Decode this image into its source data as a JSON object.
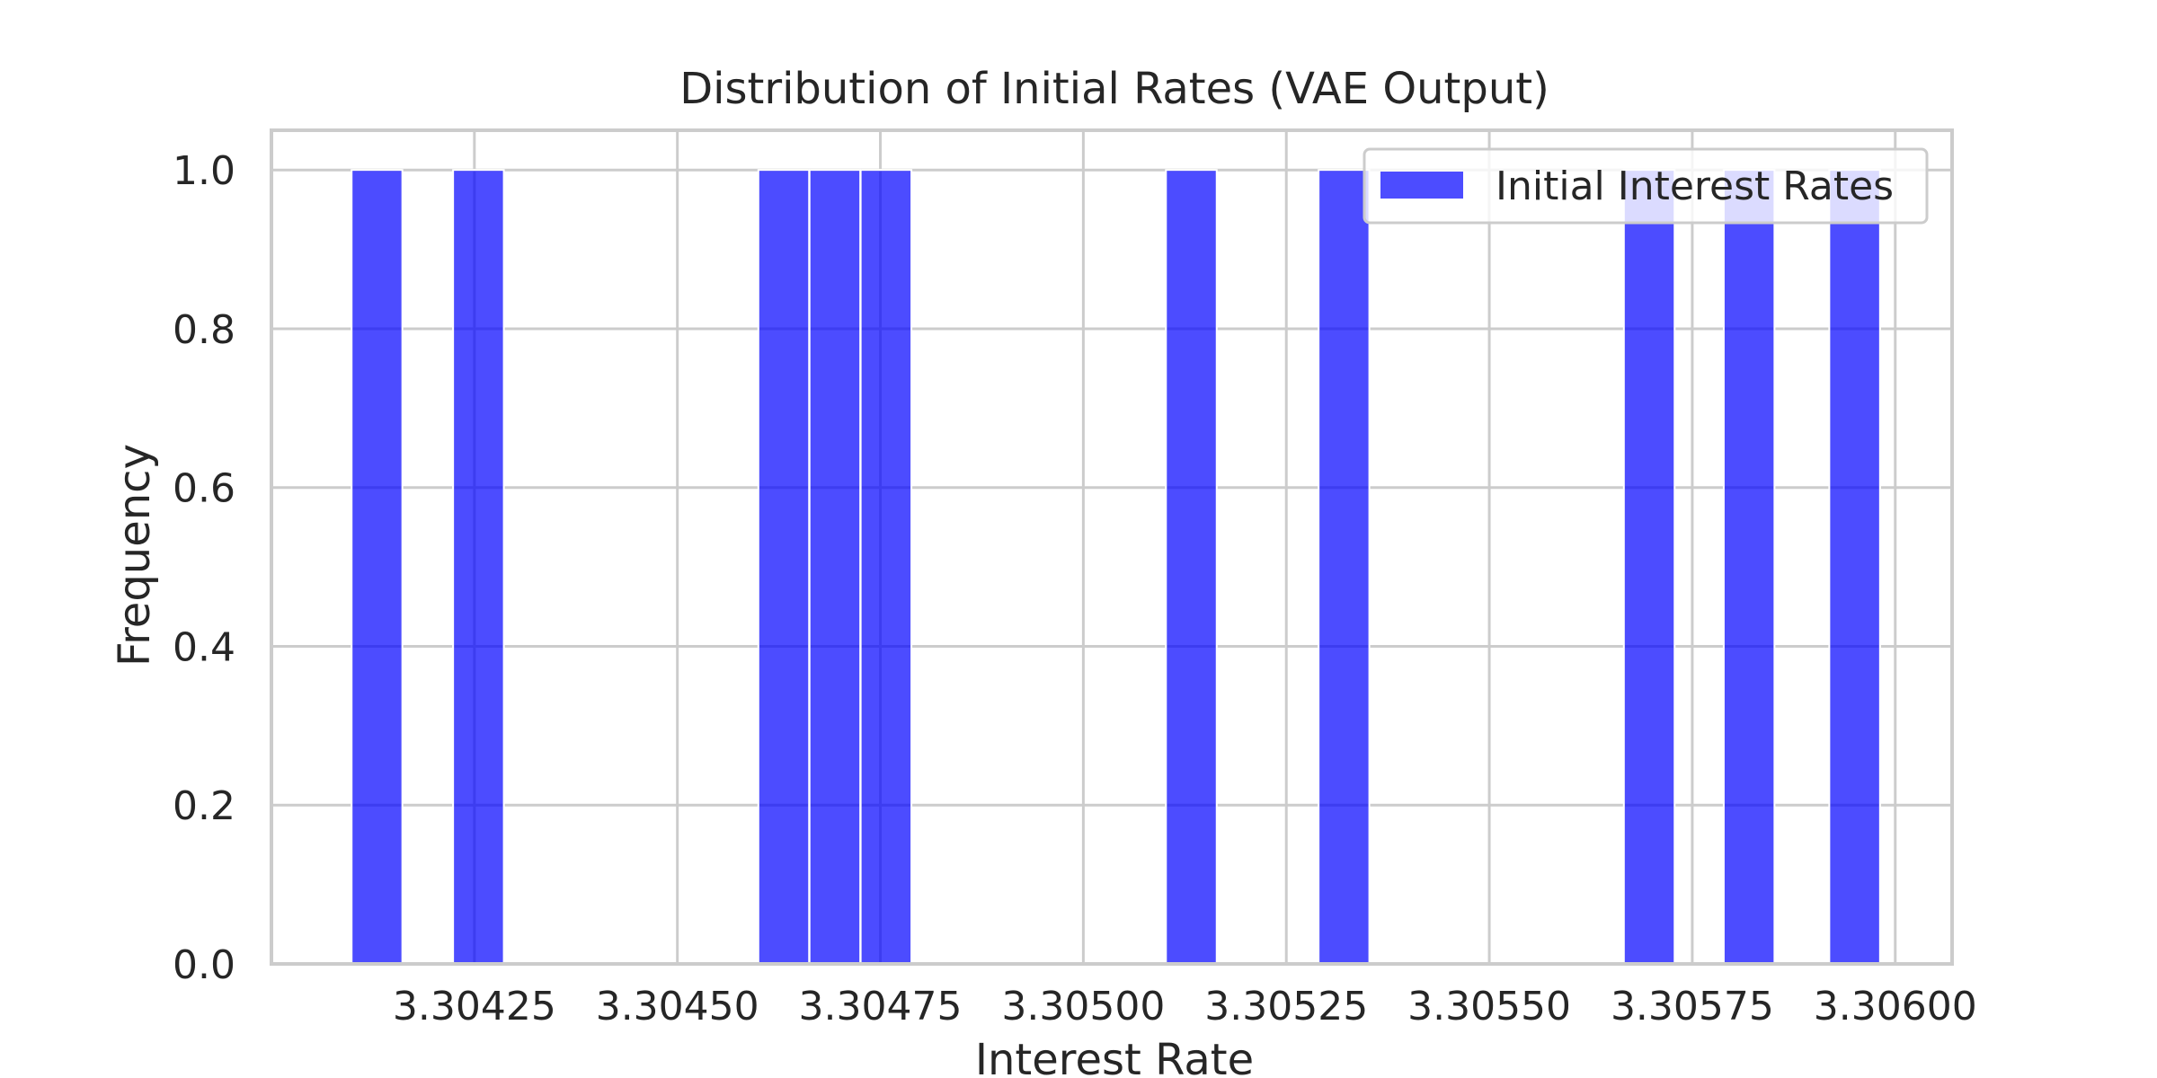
{
  "chart_data": {
    "type": "bar",
    "title": "Distribution of Initial Rates (VAE Output)",
    "xlabel": "Interest Rate",
    "ylabel": "Frequency",
    "xlim": [
      3.304,
      3.30607
    ],
    "ylim": [
      0,
      1.05
    ],
    "x_ticks": [
      3.30425,
      3.3045,
      3.30475,
      3.305,
      3.30525,
      3.3055,
      3.30575,
      3.306
    ],
    "x_tick_labels": [
      "3.30425",
      "3.30450",
      "3.30475",
      "3.30500",
      "3.30525",
      "3.30550",
      "3.30575",
      "3.30600"
    ],
    "y_ticks": [
      0.0,
      0.2,
      0.4,
      0.6,
      0.8,
      1.0
    ],
    "y_tick_labels": [
      "0.0",
      "0.2",
      "0.4",
      "0.6",
      "0.8",
      "1.0"
    ],
    "bin_width": 6.25e-05,
    "bars": [
      {
        "x": 3.30413,
        "value": 1
      },
      {
        "x": 3.304255,
        "value": 1
      },
      {
        "x": 3.304631,
        "value": 1
      },
      {
        "x": 3.304694,
        "value": 1
      },
      {
        "x": 3.304757,
        "value": 1
      },
      {
        "x": 3.305133,
        "value": 1
      },
      {
        "x": 3.305321,
        "value": 1
      },
      {
        "x": 3.305697,
        "value": 1
      },
      {
        "x": 3.30582,
        "value": 1
      },
      {
        "x": 3.30595,
        "value": 1
      }
    ],
    "series": [
      {
        "name": "Initial Interest Rates",
        "color": "#0000ff",
        "alpha": 0.7
      }
    ],
    "grid": true,
    "legend_position": "upper right"
  }
}
